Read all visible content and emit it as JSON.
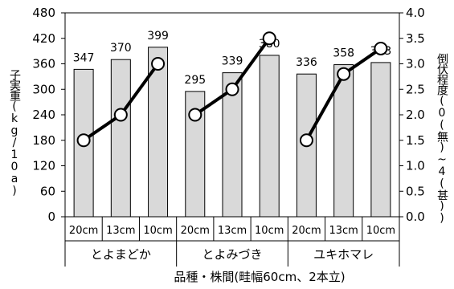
{
  "chart_data": {
    "type": "bar+line",
    "categories": [
      "20cm",
      "13cm",
      "10cm",
      "20cm",
      "13cm",
      "10cm",
      "20cm",
      "13cm",
      "10cm"
    ],
    "groups": [
      {
        "name": "とよまどか",
        "span": [
          0,
          2
        ]
      },
      {
        "name": "とよみづき",
        "span": [
          3,
          5
        ]
      },
      {
        "name": "ユキホマレ",
        "span": [
          6,
          8
        ]
      }
    ],
    "series": [
      {
        "values": [
          347,
          370,
          399,
          295,
          339,
          380,
          336,
          358,
          363
        ],
        "axis": "left",
        "kind": "bar",
        "color": "#d9d9d9"
      },
      {
        "values": [
          1.5,
          2.0,
          3.0,
          2.0,
          2.5,
          3.5,
          1.5,
          2.8,
          3.3
        ],
        "axis": "right",
        "kind": "line",
        "color": "#000000",
        "segments": [
          [
            0,
            2
          ],
          [
            3,
            5
          ],
          [
            6,
            8
          ]
        ]
      }
    ],
    "xlabel": "品種・株間(畦幅60cm、2本立)",
    "ylabel_left": "子実重(kg/10a)",
    "ylabel_right": "倒伏程度(0(無)~4(甚))",
    "ylim_left": [
      0,
      480
    ],
    "yticks_left": [
      "0",
      "60",
      "120",
      "180",
      "240",
      "300",
      "360",
      "420",
      "480"
    ],
    "ylim_right": [
      0,
      4.0
    ],
    "yticks_right": [
      "0.0",
      "0.5",
      "1.0",
      "1.5",
      "2.0",
      "2.5",
      "3.0",
      "3.5",
      "4.0"
    ],
    "grid": false
  }
}
